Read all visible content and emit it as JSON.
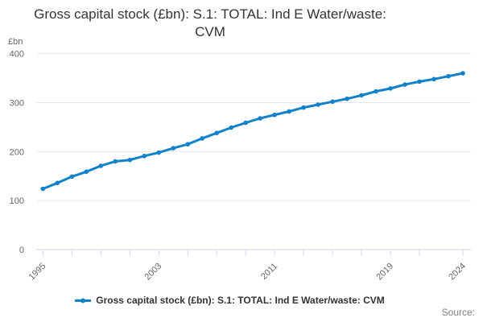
{
  "header": {
    "title_line1": "Gross capital stock (£bn): S.1: TOTAL: Ind E Water/waste:",
    "title_line2": "CVM"
  },
  "axes": {
    "y_unit_label": "£bn"
  },
  "legend": {
    "item_label": "Gross capital stock (£bn): S.1: TOTAL: Ind E Water/waste: CVM"
  },
  "footer": {
    "source_label": "Source:"
  },
  "colors": {
    "series": "#1181c9",
    "grid": "#e6e6e6",
    "axis": "#ccd6eb",
    "tick_label": "#666666",
    "title": "#333333",
    "legend_text": "#333333",
    "source": "#808080"
  },
  "chart_data": {
    "type": "line",
    "title": "Gross capital stock (£bn): S.1: TOTAL: Ind E Water/waste: CVM",
    "xlabel": "",
    "ylabel": "£bn",
    "ylim": [
      0,
      400
    ],
    "xlim": [
      1995,
      2024
    ],
    "grid": true,
    "legend_position": "bottom",
    "y_ticks": [
      0,
      100,
      200,
      300,
      400
    ],
    "x_tick_marks": [
      1995,
      1997,
      1999,
      2001,
      2003,
      2005,
      2007,
      2009,
      2011,
      2013,
      2015,
      2017,
      2019,
      2021,
      2024
    ],
    "x_tick_labels": [
      1995,
      2003,
      2011,
      2019,
      2024
    ],
    "x": [
      1995,
      1996,
      1997,
      1998,
      1999,
      2000,
      2001,
      2002,
      2003,
      2004,
      2005,
      2006,
      2007,
      2008,
      2009,
      2010,
      2011,
      2012,
      2013,
      2014,
      2015,
      2016,
      2017,
      2018,
      2019,
      2020,
      2021,
      2022,
      2023,
      2024
    ],
    "series": [
      {
        "name": "Gross capital stock (£bn): S.1: TOTAL: Ind E Water/waste: CVM",
        "values": [
          124,
          136,
          149,
          159,
          171,
          180,
          183,
          191,
          198,
          207,
          215,
          227,
          238,
          249,
          259,
          268,
          275,
          282,
          290,
          296,
          302,
          308,
          315,
          323,
          329,
          337,
          343,
          348,
          354,
          360
        ]
      }
    ]
  }
}
